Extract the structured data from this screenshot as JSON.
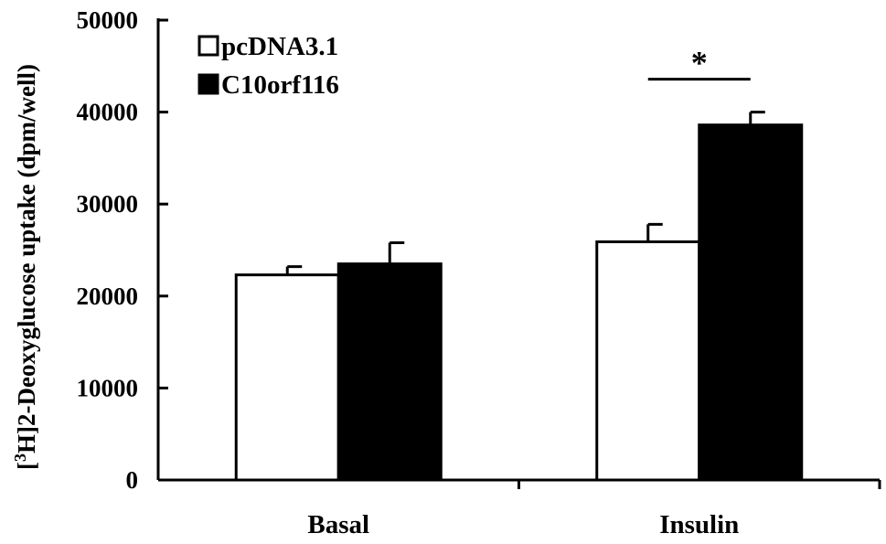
{
  "chart_data": {
    "type": "bar",
    "categories": [
      "Basal",
      "Insulin"
    ],
    "series": [
      {
        "name": "pcDNA3.1",
        "values": [
          22300,
          25900
        ],
        "errors": [
          900,
          1900
        ],
        "color": "#ffffff"
      },
      {
        "name": "C10orf116",
        "values": [
          23500,
          38600
        ],
        "errors": [
          2300,
          1400
        ],
        "color": "#000000"
      }
    ],
    "xlabel": "",
    "ylabel": {
      "prefix": "[",
      "superscript": "3",
      "suffix": "H]2-Deoxyglucose uptake (dpm/well)"
    },
    "ylim": [
      0,
      50000
    ],
    "yticks": [
      0,
      10000,
      20000,
      30000,
      40000,
      50000
    ],
    "ytick_labels": [
      "0",
      "10000",
      "20000",
      "30000",
      "40000",
      "50000"
    ],
    "grid": false,
    "legend_position": "top-left",
    "annotations": [
      {
        "text": "*",
        "category": "Insulin",
        "type": "significance"
      }
    ]
  }
}
